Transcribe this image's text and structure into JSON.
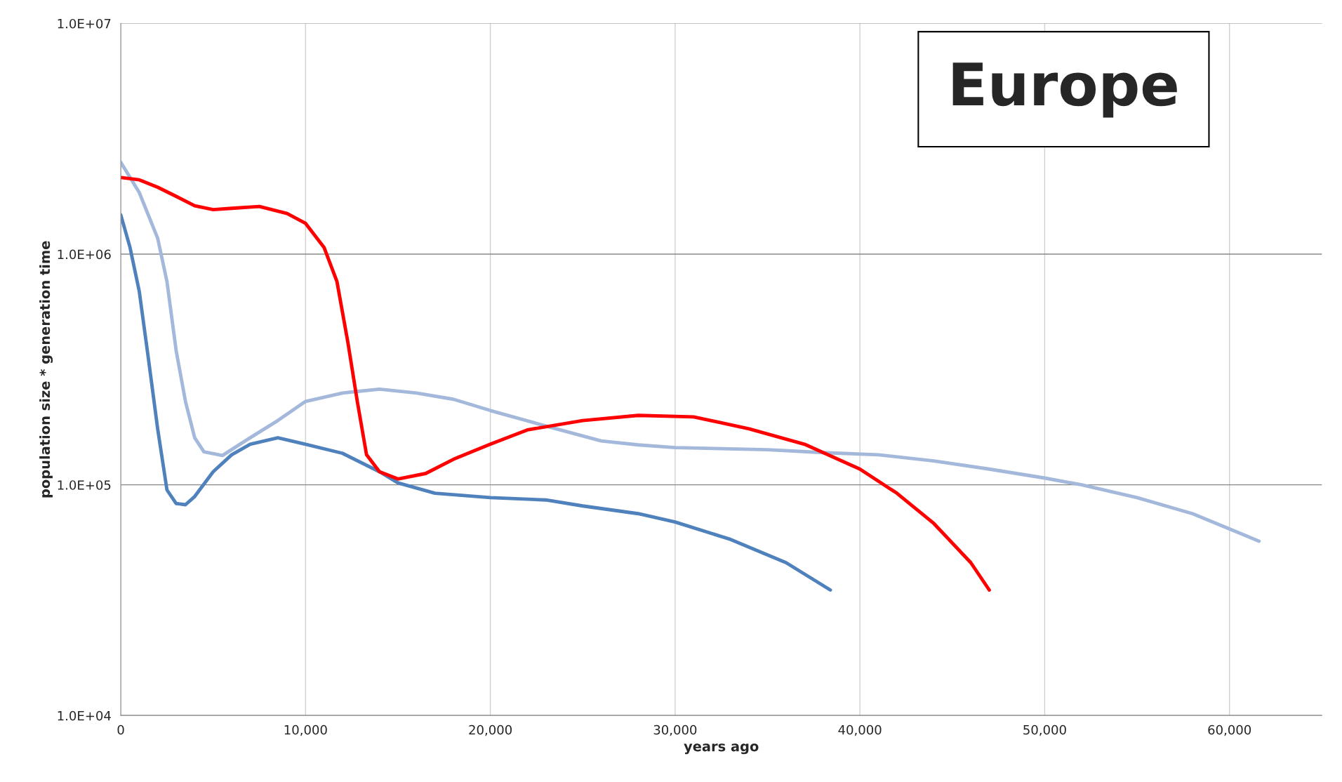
{
  "chart_data": {
    "type": "line",
    "title": "Europe",
    "xlabel": "years ago",
    "ylabel": "population size * generation time",
    "log": "y",
    "grid": true,
    "legend": false,
    "marker": "none",
    "line_style": "solid",
    "xlim": [
      0,
      65000
    ],
    "xticks": [
      {
        "value": 0,
        "label": "0"
      },
      {
        "value": 10000,
        "label": "10,000"
      },
      {
        "value": 20000,
        "label": "20,000"
      },
      {
        "value": 30000,
        "label": "30,000"
      },
      {
        "value": 40000,
        "label": "40,000"
      },
      {
        "value": 50000,
        "label": "50,000"
      },
      {
        "value": 60000,
        "label": "60,000"
      }
    ],
    "ylim": [
      10000,
      10000000
    ],
    "yticks": [
      {
        "value": 10000,
        "label": "1.0E+04"
      },
      {
        "value": 100000,
        "label": "1.0E+05"
      },
      {
        "value": 1000000,
        "label": "1.0E+06"
      },
      {
        "value": 10000000,
        "label": "1.0E+07"
      }
    ],
    "series": [
      {
        "color": "#4f81bd",
        "x": [
          0,
          500,
          1000,
          1500,
          2000,
          2500,
          3000,
          3500,
          4000,
          5000,
          6000,
          7000,
          8500,
          10000,
          12000,
          14000,
          15000,
          17000,
          20000,
          23000,
          25000,
          28000,
          30000,
          33000,
          36000,
          38400
        ],
        "values": [
          1480000,
          1070000,
          690000,
          350000,
          174000,
          95000,
          83000,
          82000,
          89000,
          114000,
          135000,
          150000,
          160000,
          150000,
          137000,
          114000,
          102000,
          92000,
          88000,
          86000,
          81000,
          75000,
          69000,
          58000,
          46000,
          35000
        ]
      },
      {
        "color": "#a3b8da",
        "x": [
          0,
          1000,
          2000,
          2500,
          3000,
          3500,
          4000,
          4500,
          5500,
          7000,
          8500,
          10000,
          12000,
          14000,
          16000,
          18000,
          20000,
          23000,
          26000,
          28000,
          30000,
          35000,
          38000,
          41000,
          44000,
          47000,
          50000,
          52000,
          55000,
          58000,
          61600
        ],
        "values": [
          2500000,
          1850000,
          1170000,
          760000,
          380000,
          230000,
          160000,
          139000,
          134000,
          160000,
          190000,
          230000,
          250000,
          260000,
          250000,
          235000,
          210000,
          180000,
          155000,
          149000,
          145000,
          142000,
          138000,
          135000,
          127000,
          117000,
          107000,
          100000,
          88000,
          75000,
          57000
        ]
      },
      {
        "color": "#ff0000",
        "x": [
          0,
          1000,
          2000,
          3000,
          4000,
          5000,
          6000,
          7500,
          9000,
          10000,
          11000,
          11700,
          12300,
          12800,
          13300,
          14000,
          15000,
          16500,
          18000,
          20000,
          22000,
          25000,
          28000,
          31000,
          34000,
          37000,
          40000,
          42000,
          44000,
          46000,
          47000
        ],
        "values": [
          2150000,
          2100000,
          1950000,
          1780000,
          1620000,
          1560000,
          1580000,
          1610000,
          1500000,
          1360000,
          1070000,
          760000,
          410000,
          230000,
          135000,
          114000,
          106000,
          112000,
          129000,
          150000,
          173000,
          190000,
          200000,
          197000,
          175000,
          150000,
          117000,
          92000,
          68000,
          46000,
          35000
        ]
      }
    ]
  }
}
